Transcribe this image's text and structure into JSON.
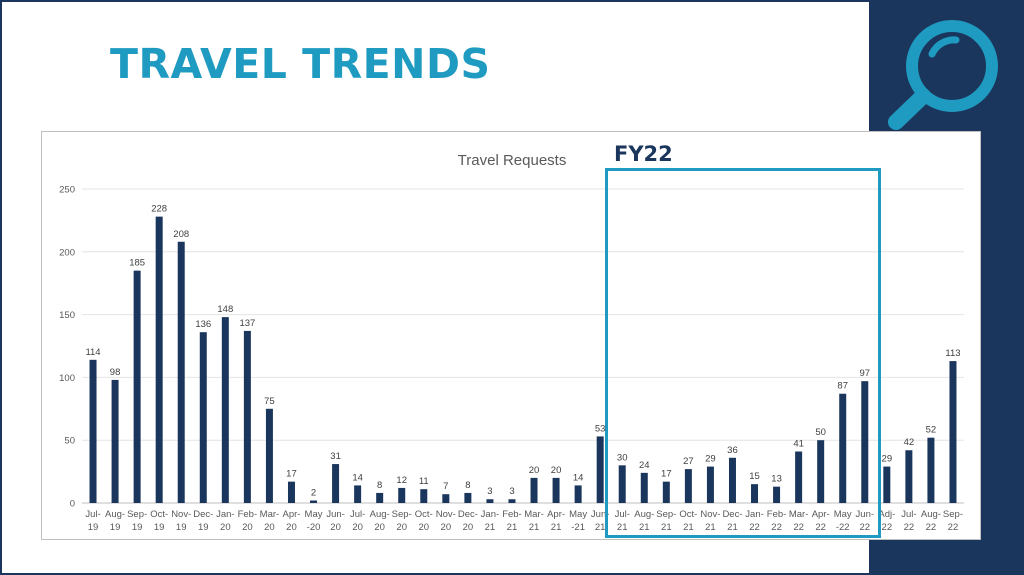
{
  "slide": {
    "title": "TRAVEL TRENDS",
    "highlight_label": "FY22",
    "colors": {
      "title": "#1f9bc1",
      "panel": "#1b365d",
      "bar": "#1b365d",
      "highlight": "#1f9bc1"
    },
    "icon": "search-icon"
  },
  "chart_data": {
    "type": "bar",
    "title": "Travel Requests",
    "xlabel": "",
    "ylabel": "",
    "ylim": [
      0,
      250
    ],
    "yticks": [
      0,
      50,
      100,
      150,
      200,
      250
    ],
    "grid": true,
    "legend": "none",
    "categories": [
      [
        "Jul-",
        "19"
      ],
      [
        "Aug-",
        "19"
      ],
      [
        "Sep-",
        "19"
      ],
      [
        "Oct-",
        "19"
      ],
      [
        "Nov-",
        "19"
      ],
      [
        "Dec-",
        "19"
      ],
      [
        "Jan-",
        "20"
      ],
      [
        "Feb-",
        "20"
      ],
      [
        "Mar-",
        "20"
      ],
      [
        "Apr-",
        "20"
      ],
      [
        "May",
        "-20"
      ],
      [
        "Jun-",
        "20"
      ],
      [
        "Jul-",
        "20"
      ],
      [
        "Aug-",
        "20"
      ],
      [
        "Sep-",
        "20"
      ],
      [
        "Oct-",
        "20"
      ],
      [
        "Nov-",
        "20"
      ],
      [
        "Dec-",
        "20"
      ],
      [
        "Jan-",
        "21"
      ],
      [
        "Feb-",
        "21"
      ],
      [
        "Mar-",
        "21"
      ],
      [
        "Apr-",
        "21"
      ],
      [
        "May",
        "-21"
      ],
      [
        "Jun-",
        "21"
      ],
      [
        "Jul-",
        "21"
      ],
      [
        "Aug-",
        "21"
      ],
      [
        "Sep-",
        "21"
      ],
      [
        "Oct-",
        "21"
      ],
      [
        "Nov-",
        "21"
      ],
      [
        "Dec-",
        "21"
      ],
      [
        "Jan-",
        "22"
      ],
      [
        "Feb-",
        "22"
      ],
      [
        "Mar-",
        "22"
      ],
      [
        "Apr-",
        "22"
      ],
      [
        "May",
        "-22"
      ],
      [
        "Jun-",
        "22"
      ],
      [
        "Adj-",
        "22"
      ],
      [
        "Jul-",
        "22"
      ],
      [
        "Aug-",
        "22"
      ],
      [
        "Sep-",
        "22"
      ]
    ],
    "values": [
      114,
      98,
      185,
      228,
      208,
      136,
      148,
      137,
      75,
      17,
      2,
      31,
      14,
      8,
      12,
      11,
      7,
      8,
      3,
      3,
      20,
      20,
      14,
      53,
      30,
      24,
      17,
      27,
      29,
      36,
      15,
      13,
      41,
      50,
      87,
      97,
      29,
      42,
      52,
      113
    ]
  }
}
